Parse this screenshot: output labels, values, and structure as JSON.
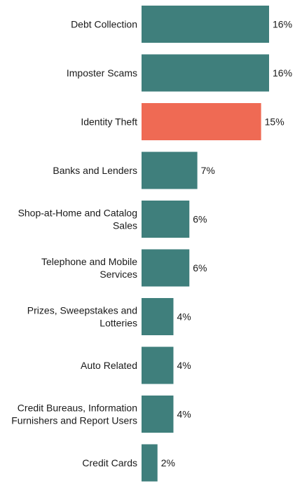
{
  "chart_data": {
    "type": "bar",
    "orientation": "horizontal",
    "categories": [
      "Debt Collection",
      "Imposter Scams",
      "Identity Theft",
      "Banks and Lenders",
      "Shop-at-Home and Catalog Sales",
      "Telephone and Mobile Services",
      "Prizes, Sweepstakes and Lotteries",
      "Auto Related",
      "Credit Bureaus, Information Furnishers and Report Users",
      "Credit Cards"
    ],
    "category_label_lines": [
      [
        "Debt Collection"
      ],
      [
        "Imposter Scams"
      ],
      [
        "Identity Theft"
      ],
      [
        "Banks and Lenders"
      ],
      [
        "Shop-at-Home and Catalog",
        "Sales"
      ],
      [
        "Telephone and Mobile",
        "Services"
      ],
      [
        "Prizes, Sweepstakes and",
        "Lotteries"
      ],
      [
        "Auto Related"
      ],
      [
        "Credit Bureaus, Information",
        "Furnishers and Report Users"
      ],
      [
        "Credit Cards"
      ]
    ],
    "values": [
      16,
      16,
      15,
      7,
      6,
      6,
      4,
      4,
      4,
      2
    ],
    "value_labels": [
      "16%",
      "16%",
      "15%",
      "7%",
      "6%",
      "6%",
      "4%",
      "4%",
      "4%",
      "2%"
    ],
    "highlight_index": 2,
    "xlim": [
      0,
      16
    ],
    "title": "",
    "xlabel": "",
    "ylabel": "",
    "grid": false,
    "colors": {
      "default": "#3f7f7c",
      "highlight": "#ef6a54"
    }
  }
}
